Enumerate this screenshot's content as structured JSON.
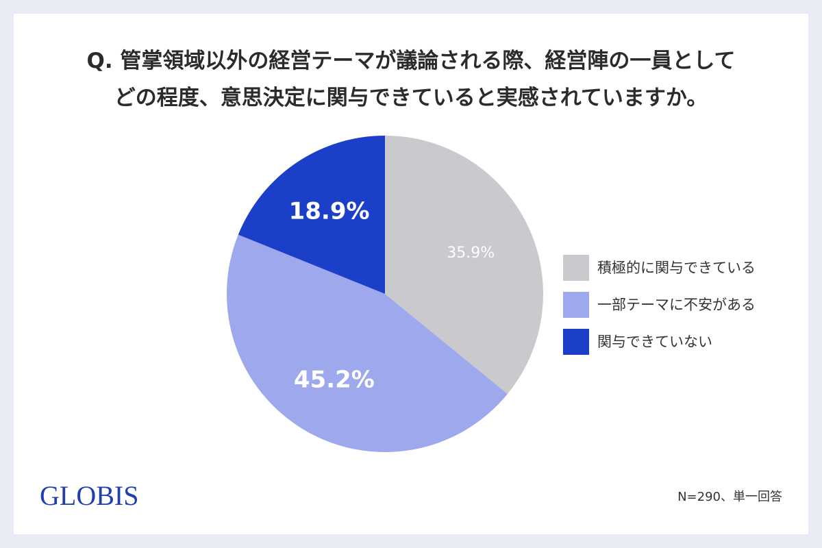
{
  "title_lines": [
    "Q. 管掌領域以外の経営テーマが議論される際、経営陣の一員として",
    "どの程度、意思決定に関与できていると実感されていますか。"
  ],
  "chart_data": {
    "type": "pie",
    "categories": [
      "積極的に関与できている",
      "一部テーマに不安がある",
      "関与できていない"
    ],
    "values": [
      35.9,
      45.2,
      18.9
    ],
    "value_labels": [
      "35.9%",
      "45.2%",
      "18.9%"
    ],
    "colors": [
      "#c9c9ce",
      "#9ea8ec",
      "#1c3fca"
    ],
    "start_angle": "12 o'clock",
    "direction": "clockwise",
    "legend_position": "right"
  },
  "legend": [
    {
      "label": "積極的に関与できている",
      "color": "#c9c9ce"
    },
    {
      "label": "一部テーマに不安がある",
      "color": "#9ea8ec"
    },
    {
      "label": "関与できていない",
      "color": "#1c3fca"
    }
  ],
  "logo": "GLOBIS",
  "footnote": "N=290、単一回答"
}
